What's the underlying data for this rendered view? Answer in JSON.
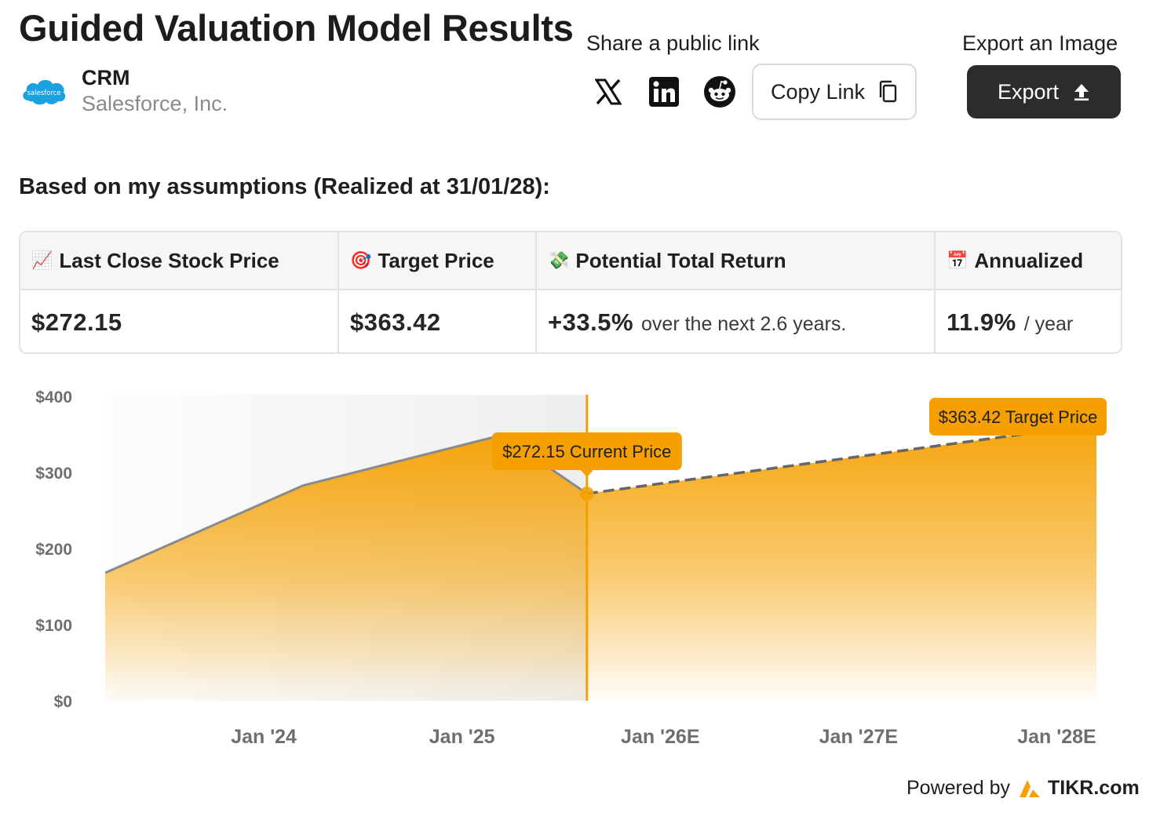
{
  "header": {
    "title": "Guided Valuation Model Results",
    "ticker": "CRM",
    "company": "Salesforce, Inc.",
    "logo_text": "salesforce"
  },
  "share": {
    "label": "Share a public link",
    "icons": [
      "x-icon",
      "linkedin-icon",
      "reddit-icon"
    ],
    "copy_label": "Copy Link"
  },
  "export": {
    "label": "Export an Image",
    "button": "Export"
  },
  "assumptions_heading": "Based on my assumptions (Realized at 31/01/28):",
  "stats": {
    "last_close": {
      "emoji": "📈",
      "label": "Last Close Stock Price",
      "value": "$272.15"
    },
    "target": {
      "emoji": "🎯",
      "label": "Target Price",
      "value": "$363.42"
    },
    "return": {
      "emoji": "💸",
      "label": "Potential Total Return",
      "value": "+33.5%",
      "suffix": "over the next 2.6 years."
    },
    "annualized": {
      "emoji": "📅",
      "label": "Annualized",
      "value": "11.9%",
      "suffix": "/ year"
    }
  },
  "chart_data": {
    "type": "area",
    "ylim": [
      0,
      400
    ],
    "y_ticks": [
      "$400",
      "$300",
      "$200",
      "$100",
      "$0"
    ],
    "y_tick_values": [
      400,
      300,
      200,
      100,
      0
    ],
    "x_ticks": [
      "Jan '24",
      "Jan '25",
      "Jan '26E",
      "Jan '27E",
      "Jan '28E"
    ],
    "x_tick_values": [
      2024.0,
      2025.0,
      2026.0,
      2027.0,
      2028.0
    ],
    "xlim": [
      2023.2,
      2028.2
    ],
    "historical": {
      "x": [
        2023.2,
        2024.2,
        2025.2,
        2025.63
      ],
      "y": [
        168,
        283,
        349,
        272.15
      ]
    },
    "projected": {
      "x": [
        2025.63,
        2028.2
      ],
      "y": [
        272.15,
        363.42
      ]
    },
    "current_x": 2025.63,
    "current_label": "$272.15 Current Price",
    "target_label": "$363.42 Target Price",
    "colors": {
      "accent": "#f5a000",
      "historical_line": "#8a8a8a",
      "projected_line": "#666666",
      "shade": "#f2f2f2"
    }
  },
  "footer": {
    "powered": "Powered by",
    "brand": "TIKR.com"
  }
}
